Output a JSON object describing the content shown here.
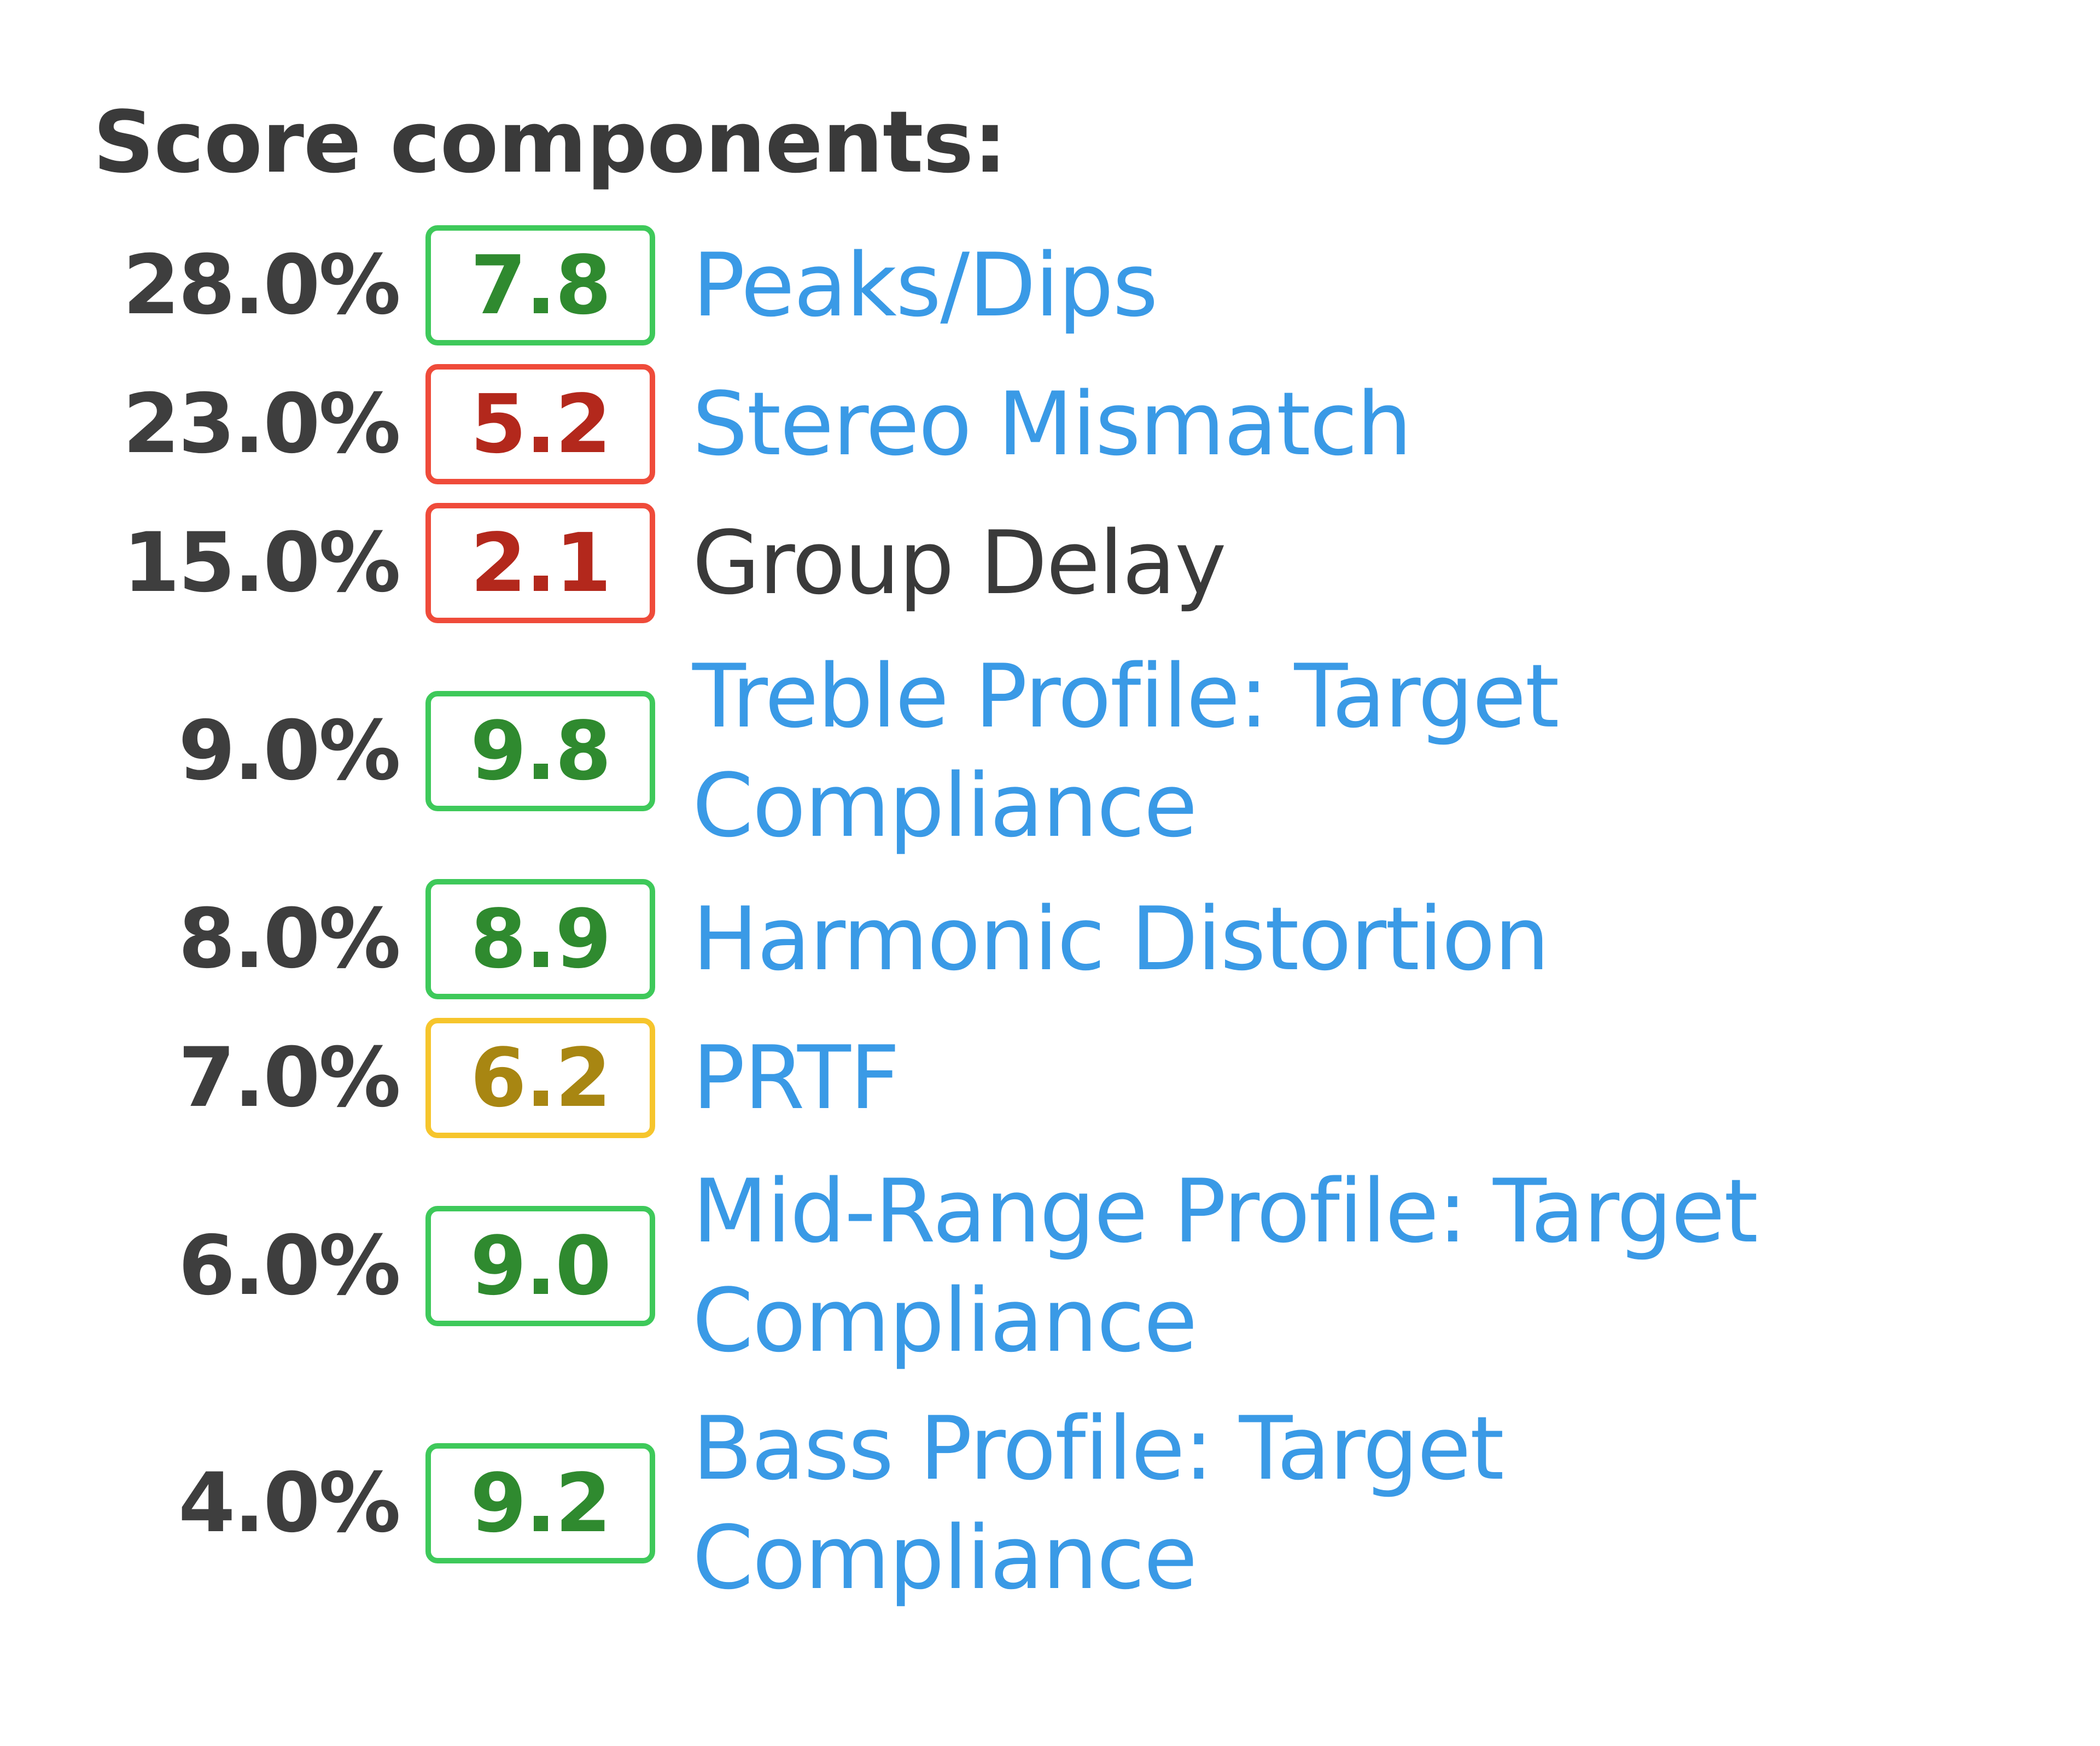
{
  "section": {
    "title": "Score components:"
  },
  "components": [
    {
      "weight": "28.0%",
      "score": "7.8",
      "status": "green",
      "label": "Peaks/Dips",
      "linked": true
    },
    {
      "weight": "23.0%",
      "score": "5.2",
      "status": "red",
      "label": "Stereo Mismatch",
      "linked": true
    },
    {
      "weight": "15.0%",
      "score": "2.1",
      "status": "red",
      "label": "Group Delay",
      "linked": false
    },
    {
      "weight": "9.0%",
      "score": "9.8",
      "status": "green",
      "label": "Treble Profile: Target Compliance",
      "linked": true
    },
    {
      "weight": "8.0%",
      "score": "8.9",
      "status": "green",
      "label": "Harmonic Distortion",
      "linked": true
    },
    {
      "weight": "7.0%",
      "score": "6.2",
      "status": "yellow",
      "label": "PRTF",
      "linked": true
    },
    {
      "weight": "6.0%",
      "score": "9.0",
      "status": "green",
      "label": "Mid-Range Profile: Target Compliance",
      "linked": true
    },
    {
      "weight": "4.0%",
      "score": "9.2",
      "status": "green",
      "label": "Bass Profile: Target Compliance",
      "linked": true
    }
  ],
  "colors": {
    "link": "#3a9ae6",
    "good_border": "#3ec95a",
    "bad_border": "#ef4b3a",
    "mid_border": "#f6c52c"
  }
}
